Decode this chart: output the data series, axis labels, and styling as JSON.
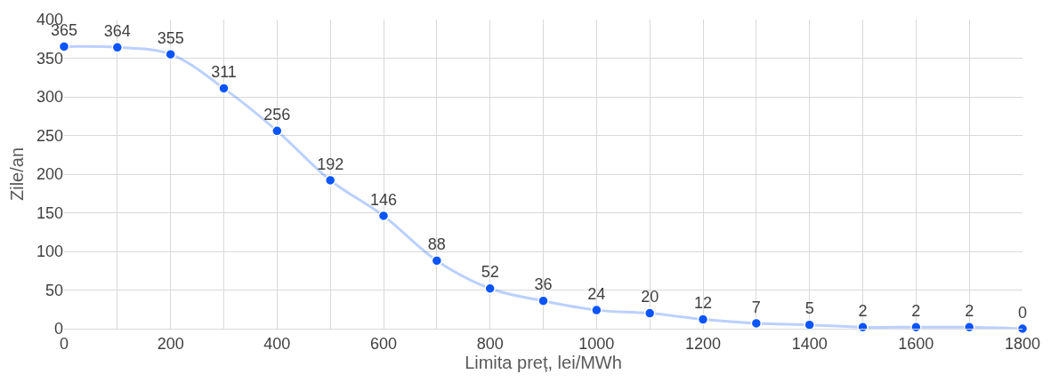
{
  "chart_data": {
    "type": "line",
    "xlabel": "Limita preț, lei/MWh",
    "ylabel": "Zile/an",
    "x": [
      0,
      100,
      200,
      300,
      400,
      500,
      600,
      700,
      800,
      900,
      1000,
      1100,
      1200,
      1300,
      1400,
      1500,
      1600,
      1700,
      1800
    ],
    "series": [
      {
        "color": "#0a55ff",
        "values": [
          365,
          364,
          355,
          311,
          256,
          192,
          146,
          88,
          52,
          36,
          24,
          20,
          12,
          7,
          5,
          2,
          2,
          2,
          0
        ]
      }
    ],
    "xlim": [
      0,
      1800
    ],
    "xticks": [
      0,
      {
        "value": 100,
        "label": null
      },
      200,
      {
        "value": 300,
        "label": null
      },
      400,
      {
        "value": 500,
        "label": null
      },
      600,
      {
        "value": 700,
        "label": null
      },
      800,
      {
        "value": 900,
        "label": null
      },
      1000,
      {
        "value": 1100,
        "label": null
      },
      1200,
      {
        "value": 1300,
        "label": null
      },
      1400,
      {
        "value": 1500,
        "label": null
      },
      1600,
      {
        "value": 1700,
        "label": null
      },
      1800
    ],
    "ylim": [
      0,
      400
    ],
    "yticks": [
      0,
      50,
      100,
      150,
      200,
      250,
      300,
      350,
      400
    ],
    "grid": true,
    "marker": "circle",
    "line_style": "solid",
    "data_labels": true
  }
}
